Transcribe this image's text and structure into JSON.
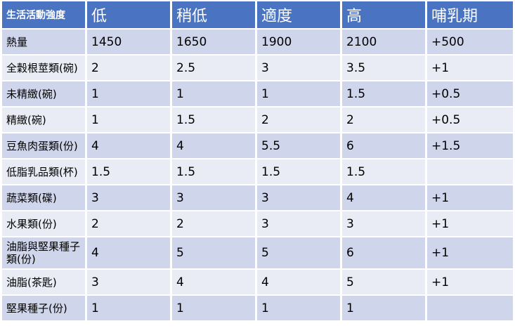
{
  "table": {
    "header": {
      "corner": "生活活動強度",
      "columns": [
        "低",
        "稍低",
        "適度",
        "高",
        "哺乳期"
      ]
    },
    "rows": [
      {
        "label": "熱量",
        "values": [
          "1450",
          "1650",
          "1900",
          "2100",
          "+500"
        ]
      },
      {
        "label": "全穀根莖類(碗)",
        "values": [
          "2",
          "2.5",
          "3",
          "3.5",
          "+1"
        ]
      },
      {
        "label": "未精緻(碗)",
        "values": [
          "1",
          "1",
          "1",
          "1.5",
          "+0.5"
        ]
      },
      {
        "label": "精緻(碗)",
        "values": [
          "1",
          "1.5",
          "2",
          "2",
          "+0.5"
        ]
      },
      {
        "label": "豆魚肉蛋類(份)",
        "values": [
          "4",
          "4",
          "5.5",
          "6",
          "+1.5"
        ]
      },
      {
        "label": "低脂乳品類(杯)",
        "values": [
          "1.5",
          "1.5",
          "1.5",
          "1.5",
          ""
        ]
      },
      {
        "label": "蔬菜類(碟)",
        "values": [
          "3",
          "3",
          "3",
          "4",
          "+1"
        ]
      },
      {
        "label": "水果類(份)",
        "values": [
          "2",
          "2",
          "3",
          "3",
          "+1"
        ]
      },
      {
        "label": "油脂與堅果種子類(份)",
        "values": [
          "4",
          "5",
          "5",
          "6",
          "+1"
        ]
      },
      {
        "label": "油脂(茶匙)",
        "values": [
          "3",
          "4",
          "4",
          "5",
          "+1"
        ]
      },
      {
        "label": "堅果種子(份)",
        "values": [
          "1",
          "1",
          "1",
          "1",
          ""
        ]
      }
    ]
  },
  "colors": {
    "header_bg": "#4a73c2",
    "row_dark": "#cfd5ea",
    "row_light": "#e9ebf5"
  }
}
